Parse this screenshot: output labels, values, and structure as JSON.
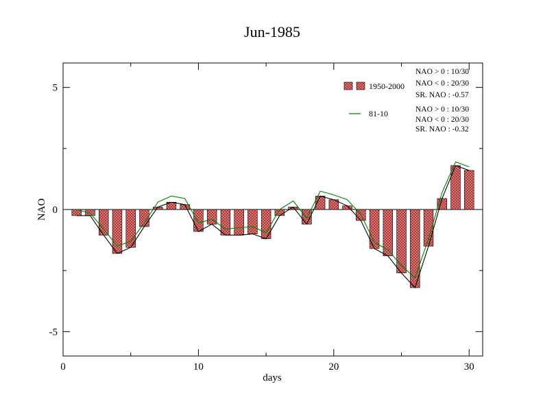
{
  "chart_data": {
    "type": "bar",
    "title": "Jun-1985",
    "xlabel": "days",
    "ylabel": "NAO",
    "xlim": [
      0,
      31
    ],
    "ylim": [
      -6,
      6
    ],
    "xticks": [
      0,
      10,
      20,
      30
    ],
    "xtick_labels": [
      "0",
      "10",
      "20",
      "30"
    ],
    "yticks": [
      -5,
      0,
      5
    ],
    "ytick_labels": [
      "-5",
      "0",
      "5"
    ],
    "grid": false,
    "legend_position": "top-right",
    "x": [
      1,
      2,
      3,
      4,
      5,
      6,
      7,
      8,
      9,
      10,
      11,
      12,
      13,
      14,
      15,
      16,
      17,
      18,
      19,
      20,
      21,
      22,
      23,
      24,
      25,
      26,
      27,
      28,
      29,
      30
    ],
    "series": [
      {
        "name": "1950-2000",
        "type": "bar",
        "color": "#e87a7a",
        "values": [
          -0.25,
          -0.25,
          -1.05,
          -1.8,
          -1.55,
          -0.7,
          0.1,
          0.3,
          0.2,
          -0.9,
          -0.6,
          -1.05,
          -1.05,
          -1.0,
          -1.2,
          -0.25,
          0.1,
          -0.6,
          0.55,
          0.4,
          0.15,
          -0.45,
          -1.6,
          -1.9,
          -2.6,
          -3.2,
          -1.5,
          0.45,
          1.8,
          1.6
        ]
      },
      {
        "name": "",
        "type": "line",
        "color": "#000000",
        "values": [
          -0.25,
          -0.25,
          -1.05,
          -1.8,
          -1.55,
          -0.7,
          0.1,
          0.3,
          0.2,
          -0.9,
          -0.6,
          -1.05,
          -1.05,
          -1.0,
          -1.2,
          -0.25,
          0.1,
          -0.6,
          0.55,
          0.4,
          0.15,
          -0.45,
          -1.6,
          -1.9,
          -2.6,
          -3.2,
          -1.5,
          0.45,
          1.8,
          1.6
        ]
      },
      {
        "name": "81-10",
        "type": "line",
        "color": "#008000",
        "values": [
          0.0,
          -0.15,
          -0.8,
          -1.5,
          -1.3,
          -0.55,
          0.3,
          0.55,
          0.45,
          -0.55,
          -0.4,
          -0.8,
          -0.75,
          -0.7,
          -0.95,
          0.0,
          0.35,
          -0.35,
          0.75,
          0.6,
          0.4,
          -0.2,
          -1.35,
          -1.65,
          -2.3,
          -2.8,
          -1.2,
          0.7,
          1.95,
          1.75
        ]
      }
    ],
    "stats": [
      [
        "NAO > 0 : 10/30",
        "NAO < 0 : 20/30",
        "SR. NAO : -0.57"
      ],
      [
        "NAO > 0 : 10/30",
        "NAO < 0 : 20/30",
        "SR. NAO : -0.32"
      ]
    ]
  }
}
